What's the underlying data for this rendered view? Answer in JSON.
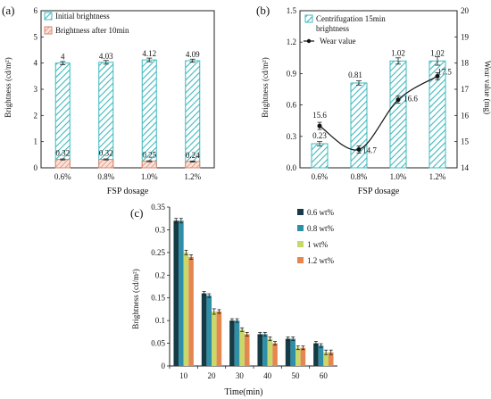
{
  "chart_data": [
    {
      "type": "bar",
      "panel_label": "(a)",
      "categories": [
        "0.6%",
        "0.8%",
        "1.0%",
        "1.2%"
      ],
      "xlabel": "FSP dosage",
      "ylabel": "Brightness (cd/m²)",
      "ylim": [
        0,
        6
      ],
      "yticks": [
        "0",
        "1",
        "2",
        "3",
        "4",
        "5",
        "6"
      ],
      "legend_position": "top-left",
      "series": [
        {
          "name": "Initial brightness",
          "values": [
            4,
            4.03,
            4.12,
            4.09
          ],
          "labels": [
            "4",
            "4.03",
            "4.12",
            "4.09"
          ],
          "errors": [
            0.06,
            0.07,
            0.07,
            0.06
          ],
          "color": "#3fb9bd",
          "fill": "#ffffff",
          "pattern": "hatch"
        },
        {
          "name": "Brightness after 10min",
          "values": [
            0.32,
            0.32,
            0.25,
            0.24
          ],
          "labels": [
            "0.32",
            "0.32",
            "0.25",
            "0.24"
          ],
          "errors": [
            0.02,
            0.02,
            0.02,
            0.02
          ],
          "color": "#d9826a",
          "fill": "#fbe3da",
          "pattern": "hatch"
        }
      ]
    },
    {
      "type": "bar+line",
      "panel_label": "(b)",
      "categories": [
        "0.6%",
        "0.8%",
        "1.0%",
        "1.2%"
      ],
      "xlabel": "FSP dosage",
      "ylabel": "Brightness (cd/m²)",
      "ylim": [
        0,
        1.5
      ],
      "yticks": [
        "0.0",
        "0.3",
        "0.6",
        "0.9",
        "1.2",
        "1.5"
      ],
      "y2label": "Wear value (mg)",
      "y2lim": [
        14,
        20
      ],
      "y2ticks": [
        "14",
        "15",
        "16",
        "17",
        "18",
        "19",
        "20"
      ],
      "legend_position": "top-left",
      "series": [
        {
          "name": "Centrifugation 15min brightness",
          "type": "bar",
          "axis": "left",
          "values": [
            0.23,
            0.81,
            1.02,
            1.02
          ],
          "labels": [
            "0.23",
            "0.81",
            "1.02",
            "1.02"
          ],
          "errors": [
            0.02,
            0.02,
            0.03,
            0.04
          ],
          "color": "#3fb9bd",
          "fill": "#ffffff",
          "pattern": "hatch"
        },
        {
          "name": "Wear value",
          "type": "line",
          "axis": "right",
          "values": [
            15.6,
            14.7,
            16.6,
            17.5
          ],
          "labels": [
            "15.6",
            "14.7",
            "16.6",
            "17.5"
          ],
          "errors": [
            0.08,
            0.08,
            0.1,
            0.1
          ],
          "color": "#111111"
        }
      ]
    },
    {
      "type": "bar",
      "panel_label": "(c)",
      "categories": [
        "10",
        "20",
        "30",
        "40",
        "50",
        "60"
      ],
      "xlabel": "Time(min)",
      "ylabel": "Brightness (cd/m²)",
      "ylim": [
        0,
        0.35
      ],
      "yticks": [
        "0",
        "0.05",
        "0.1",
        "0.15",
        "0.2",
        "0.25",
        "0.3",
        "0.35"
      ],
      "legend_position": "top-right",
      "series": [
        {
          "name": "0.6 wt%",
          "values": [
            0.32,
            0.16,
            0.1,
            0.07,
            0.06,
            0.05
          ],
          "errors": [
            0.005,
            0.004,
            0.004,
            0.004,
            0.004,
            0.004
          ],
          "color": "#163b45"
        },
        {
          "name": "0.8 wt%",
          "values": [
            0.32,
            0.155,
            0.1,
            0.07,
            0.06,
            0.045
          ],
          "errors": [
            0.005,
            0.004,
            0.004,
            0.004,
            0.004,
            0.004
          ],
          "color": "#2f8fa8"
        },
        {
          "name": "1 wt%",
          "values": [
            0.25,
            0.12,
            0.08,
            0.06,
            0.04,
            0.03
          ],
          "errors": [
            0.005,
            0.006,
            0.004,
            0.004,
            0.004,
            0.005
          ],
          "color": "#c9d86a"
        },
        {
          "name": "1.2 wt%",
          "values": [
            0.24,
            0.12,
            0.07,
            0.05,
            0.04,
            0.03
          ],
          "errors": [
            0.005,
            0.004,
            0.004,
            0.004,
            0.004,
            0.005
          ],
          "color": "#e5874f"
        }
      ]
    }
  ]
}
